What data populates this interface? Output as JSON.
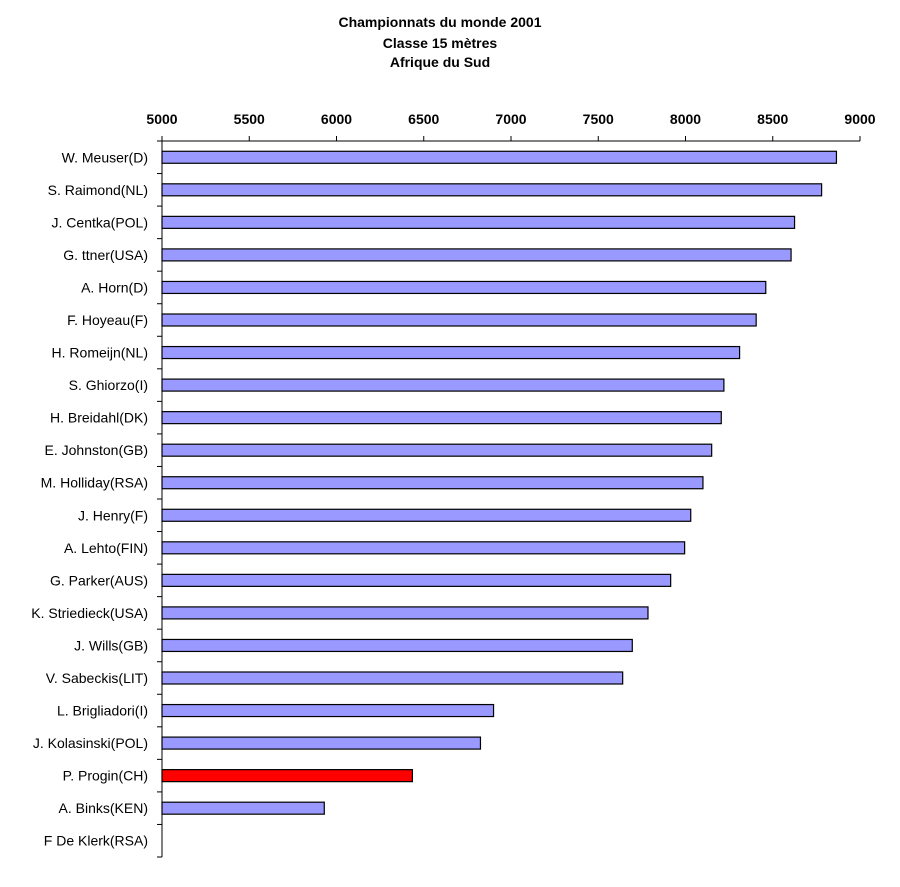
{
  "chart_data": {
    "type": "bar",
    "orientation": "horizontal",
    "title": "Championnats du monde 2001",
    "subtitle": "Classe 15 mètres",
    "subtitle2": "Afrique du Sud",
    "xlim": [
      5000,
      9000
    ],
    "xticks": [
      "5000",
      "5500",
      "6000",
      "6500",
      "7000",
      "7500",
      "8000",
      "8500",
      "9000"
    ],
    "xaxis_position": "top",
    "grid": false,
    "categories": [
      "W. Meuser(D)",
      "S. Raimond(NL)",
      "J. Centka(POL)",
      "G.  ttner(USA)",
      "A. Horn(D)",
      "F. Hoyeau(F)",
      "H. Romeijn(NL)",
      "S. Ghiorzo(I)",
      "H. Breidahl(DK)",
      "E. Johnston(GB)",
      "M. Holliday(RSA)",
      "J. Henry(F)",
      "A. Lehto(FIN)",
      "G. Parker(AUS)",
      "K. Striedieck(USA)",
      "J. Wills(GB)",
      "V. Sabeckis(LIT)",
      "L. Brigliadori(I)",
      "J. Kolasinski(POL)",
      "P. Progin(CH)",
      "A. Binks(KEN)",
      "F  De Klerk(RSA)"
    ],
    "values": [
      8865,
      8780,
      8625,
      8605,
      8460,
      8405,
      8310,
      8220,
      8205,
      8150,
      8100,
      8030,
      7995,
      7915,
      7785,
      7695,
      7640,
      6900,
      6825,
      6435,
      5930,
      null
    ],
    "highlight": "P. Progin(CH)",
    "colors": {
      "bar": "#9999ff",
      "highlight": "#ff0000",
      "outline": "#000000"
    }
  }
}
